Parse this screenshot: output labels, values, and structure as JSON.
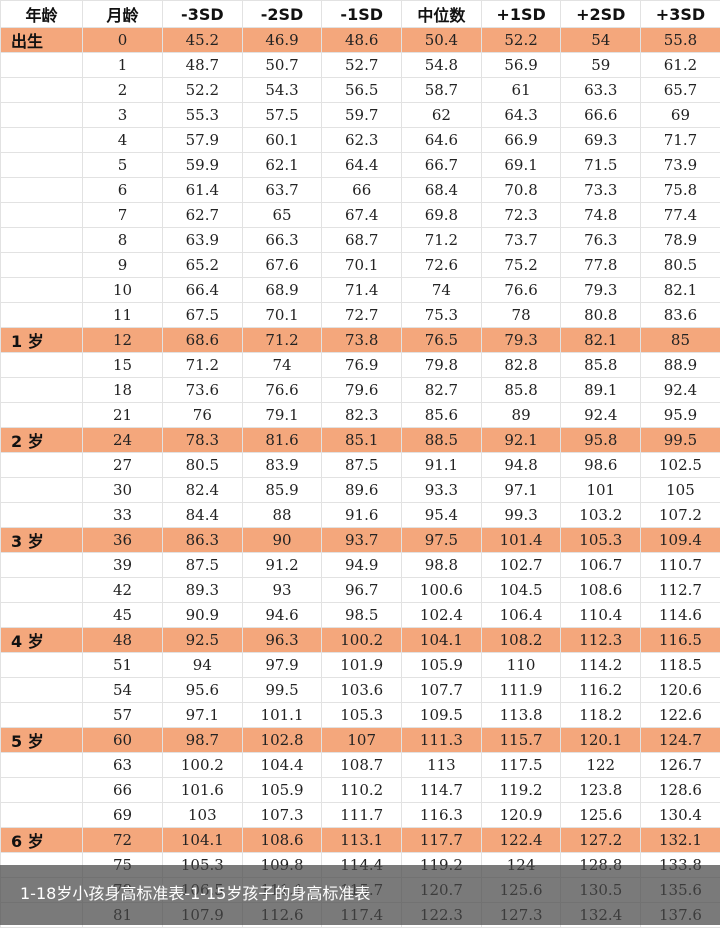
{
  "headers": [
    "年龄",
    "月龄",
    "-3SD",
    "-2SD",
    "-1SD",
    "中位数",
    "+1SD",
    "+2SD",
    "+3SD"
  ],
  "highlight_color": "#f4a77c",
  "rows": [
    {
      "age": "出生",
      "cells": [
        "0",
        "45.2",
        "46.9",
        "48.6",
        "50.4",
        "52.2",
        "54",
        "55.8"
      ]
    },
    {
      "age": "",
      "cells": [
        "1",
        "48.7",
        "50.7",
        "52.7",
        "54.8",
        "56.9",
        "59",
        "61.2"
      ]
    },
    {
      "age": "",
      "cells": [
        "2",
        "52.2",
        "54.3",
        "56.5",
        "58.7",
        "61",
        "63.3",
        "65.7"
      ]
    },
    {
      "age": "",
      "cells": [
        "3",
        "55.3",
        "57.5",
        "59.7",
        "62",
        "64.3",
        "66.6",
        "69"
      ]
    },
    {
      "age": "",
      "cells": [
        "4",
        "57.9",
        "60.1",
        "62.3",
        "64.6",
        "66.9",
        "69.3",
        "71.7"
      ]
    },
    {
      "age": "",
      "cells": [
        "5",
        "59.9",
        "62.1",
        "64.4",
        "66.7",
        "69.1",
        "71.5",
        "73.9"
      ]
    },
    {
      "age": "",
      "cells": [
        "6",
        "61.4",
        "63.7",
        "66",
        "68.4",
        "70.8",
        "73.3",
        "75.8"
      ]
    },
    {
      "age": "",
      "cells": [
        "7",
        "62.7",
        "65",
        "67.4",
        "69.8",
        "72.3",
        "74.8",
        "77.4"
      ]
    },
    {
      "age": "",
      "cells": [
        "8",
        "63.9",
        "66.3",
        "68.7",
        "71.2",
        "73.7",
        "76.3",
        "78.9"
      ]
    },
    {
      "age": "",
      "cells": [
        "9",
        "65.2",
        "67.6",
        "70.1",
        "72.6",
        "75.2",
        "77.8",
        "80.5"
      ]
    },
    {
      "age": "",
      "cells": [
        "10",
        "66.4",
        "68.9",
        "71.4",
        "74",
        "76.6",
        "79.3",
        "82.1"
      ]
    },
    {
      "age": "",
      "cells": [
        "11",
        "67.5",
        "70.1",
        "72.7",
        "75.3",
        "78",
        "80.8",
        "83.6"
      ]
    },
    {
      "age": "1 岁",
      "cells": [
        "12",
        "68.6",
        "71.2",
        "73.8",
        "76.5",
        "79.3",
        "82.1",
        "85"
      ]
    },
    {
      "age": "",
      "cells": [
        "15",
        "71.2",
        "74",
        "76.9",
        "79.8",
        "82.8",
        "85.8",
        "88.9"
      ]
    },
    {
      "age": "",
      "cells": [
        "18",
        "73.6",
        "76.6",
        "79.6",
        "82.7",
        "85.8",
        "89.1",
        "92.4"
      ]
    },
    {
      "age": "",
      "cells": [
        "21",
        "76",
        "79.1",
        "82.3",
        "85.6",
        "89",
        "92.4",
        "95.9"
      ]
    },
    {
      "age": "2 岁",
      "cells": [
        "24",
        "78.3",
        "81.6",
        "85.1",
        "88.5",
        "92.1",
        "95.8",
        "99.5"
      ]
    },
    {
      "age": "",
      "cells": [
        "27",
        "80.5",
        "83.9",
        "87.5",
        "91.1",
        "94.8",
        "98.6",
        "102.5"
      ]
    },
    {
      "age": "",
      "cells": [
        "30",
        "82.4",
        "85.9",
        "89.6",
        "93.3",
        "97.1",
        "101",
        "105"
      ]
    },
    {
      "age": "",
      "cells": [
        "33",
        "84.4",
        "88",
        "91.6",
        "95.4",
        "99.3",
        "103.2",
        "107.2"
      ]
    },
    {
      "age": "3 岁",
      "cells": [
        "36",
        "86.3",
        "90",
        "93.7",
        "97.5",
        "101.4",
        "105.3",
        "109.4"
      ]
    },
    {
      "age": "",
      "cells": [
        "39",
        "87.5",
        "91.2",
        "94.9",
        "98.8",
        "102.7",
        "106.7",
        "110.7"
      ]
    },
    {
      "age": "",
      "cells": [
        "42",
        "89.3",
        "93",
        "96.7",
        "100.6",
        "104.5",
        "108.6",
        "112.7"
      ]
    },
    {
      "age": "",
      "cells": [
        "45",
        "90.9",
        "94.6",
        "98.5",
        "102.4",
        "106.4",
        "110.4",
        "114.6"
      ]
    },
    {
      "age": "4 岁",
      "cells": [
        "48",
        "92.5",
        "96.3",
        "100.2",
        "104.1",
        "108.2",
        "112.3",
        "116.5"
      ]
    },
    {
      "age": "",
      "cells": [
        "51",
        "94",
        "97.9",
        "101.9",
        "105.9",
        "110",
        "114.2",
        "118.5"
      ]
    },
    {
      "age": "",
      "cells": [
        "54",
        "95.6",
        "99.5",
        "103.6",
        "107.7",
        "111.9",
        "116.2",
        "120.6"
      ]
    },
    {
      "age": "",
      "cells": [
        "57",
        "97.1",
        "101.1",
        "105.3",
        "109.5",
        "113.8",
        "118.2",
        "122.6"
      ]
    },
    {
      "age": "5 岁",
      "cells": [
        "60",
        "98.7",
        "102.8",
        "107",
        "111.3",
        "115.7",
        "120.1",
        "124.7"
      ]
    },
    {
      "age": "",
      "cells": [
        "63",
        "100.2",
        "104.4",
        "108.7",
        "113",
        "117.5",
        "122",
        "126.7"
      ]
    },
    {
      "age": "",
      "cells": [
        "66",
        "101.6",
        "105.9",
        "110.2",
        "114.7",
        "119.2",
        "123.8",
        "128.6"
      ]
    },
    {
      "age": "",
      "cells": [
        "69",
        "103",
        "107.3",
        "111.7",
        "116.3",
        "120.9",
        "125.6",
        "130.4"
      ]
    },
    {
      "age": "6 岁",
      "cells": [
        "72",
        "104.1",
        "108.6",
        "113.1",
        "117.7",
        "122.4",
        "127.2",
        "132.1"
      ]
    },
    {
      "age": "",
      "cells": [
        "75",
        "105.3",
        "109.8",
        "114.4",
        "119.2",
        "124",
        "128.8",
        "133.8"
      ]
    },
    {
      "age": "",
      "cells": [
        "78",
        "106.5",
        "111.1",
        "115.7",
        "120.7",
        "125.6",
        "130.5",
        "135.6"
      ]
    },
    {
      "age": "",
      "cells": [
        "81",
        "107.9",
        "112.6",
        "117.4",
        "122.3",
        "127.3",
        "132.4",
        "137.6"
      ]
    }
  ],
  "caption": "1-18岁小孩身高标准表-1-15岁孩子的身高标准表"
}
